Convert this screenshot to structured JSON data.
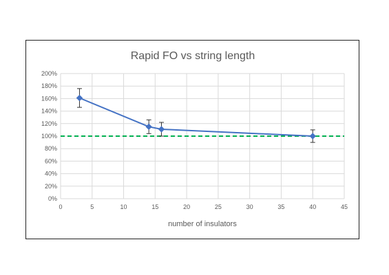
{
  "chart_data": {
    "type": "scatter",
    "title": "Rapid FO vs string length",
    "xlabel": "number of insulators",
    "ylabel": "",
    "xlim": [
      0,
      45
    ],
    "ylim": [
      0,
      2.0
    ],
    "x_ticks": [
      "0",
      "5",
      "10",
      "15",
      "20",
      "25",
      "30",
      "35",
      "40",
      "45"
    ],
    "y_ticks": [
      "0%",
      "20%",
      "40%",
      "60%",
      "80%",
      "100%",
      "120%",
      "140%",
      "160%",
      "180%",
      "200%"
    ],
    "grid": true,
    "legend": "none",
    "series": [
      {
        "x": [
          3,
          14,
          16,
          40
        ],
        "y": [
          1.61,
          1.15,
          1.11,
          1.0
        ],
        "error": [
          0.15,
          0.11,
          0.11,
          0.1
        ],
        "color": "#4472c4",
        "style": "line-with-markers"
      }
    ],
    "reference_lines": [
      {
        "y": 1.0,
        "color": "#00b050",
        "style": "dashed"
      }
    ],
    "colors": {
      "grid": "#d9d9d9",
      "text": "#595959",
      "series": "#4472c4",
      "reference": "#00b050"
    }
  }
}
